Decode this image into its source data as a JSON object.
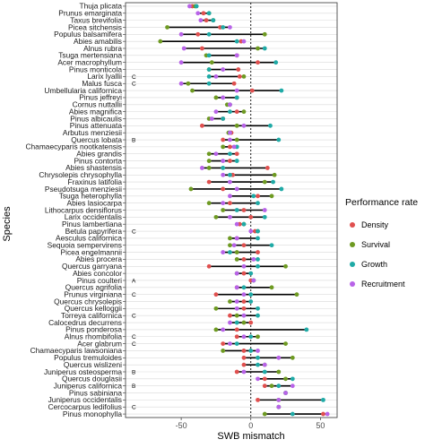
{
  "chart_data": {
    "type": "dot-range",
    "xlabel": "SWB mismatch",
    "ylabel": "Species",
    "xlim": [
      -90,
      62
    ],
    "xticks": [
      -50,
      0,
      50
    ],
    "xtick_labels": [
      "-50",
      "0",
      "50"
    ],
    "reference_line": 0,
    "legend": {
      "title": "Performance rate",
      "placement": "right",
      "entries": [
        {
          "key": "density",
          "label": "Density",
          "color": "#E0504F"
        },
        {
          "key": "survival",
          "label": "Survival",
          "color": "#6E9A22"
        },
        {
          "key": "growth",
          "label": "Growth",
          "color": "#1FAAA6"
        },
        {
          "key": "recruitment",
          "label": "Recruitment",
          "color": "#B863E8"
        }
      ]
    },
    "species": [
      {
        "name": "Thuja plicata",
        "values": {
          "density": -42,
          "survival": -40,
          "growth": -39,
          "recruitment": -44
        }
      },
      {
        "name": "Prunus emarginata",
        "values": {
          "density": -34,
          "survival": -30,
          "growth": -30,
          "recruitment": -38
        }
      },
      {
        "name": "Taxus brevifolia",
        "values": {
          "density": -32,
          "survival": -27,
          "growth": -27,
          "recruitment": -36
        }
      },
      {
        "name": "Picea sitchensis",
        "values": {
          "density": -22,
          "survival": -60,
          "growth": -20,
          "recruitment": -15
        }
      },
      {
        "name": "Populus balsamifera",
        "values": {
          "density": -38,
          "survival": 10,
          "growth": -30,
          "recruitment": -50
        }
      },
      {
        "name": "Abies amabilis",
        "values": {
          "density": -7,
          "survival": -65,
          "growth": -10,
          "recruitment": -5
        }
      },
      {
        "name": "Alnus rubra",
        "values": {
          "density": -35,
          "survival": 5,
          "growth": 10,
          "recruitment": -48
        }
      },
      {
        "name": "Tsuga mertensiana",
        "values": {
          "density": -10,
          "survival": -32,
          "growth": -30,
          "recruitment": -10
        }
      },
      {
        "name": "Acer macrophyllum",
        "values": {
          "density": 5,
          "survival": -28,
          "growth": 18,
          "recruitment": -50
        }
      },
      {
        "name": "Pinus monticola",
        "values": {
          "density": -9,
          "survival": -30,
          "growth": -30,
          "recruitment": -20
        }
      },
      {
        "name": "Larix lyallii",
        "values": {
          "density": -8,
          "survival": -5,
          "growth": -30,
          "recruitment": -25
        },
        "annotation": "C"
      },
      {
        "name": "Malus fusca",
        "values": {
          "density": -12,
          "survival": -45,
          "growth": -30,
          "recruitment": -50
        },
        "annotation": "C"
      },
      {
        "name": "Umbellularia californica",
        "values": {
          "density": 1,
          "survival": -42,
          "growth": 22,
          "recruitment": -10
        }
      },
      {
        "name": "Pinus jeffreyi",
        "values": {
          "density": -10,
          "survival": -25,
          "growth": -10,
          "recruitment": -20
        }
      },
      {
        "name": "Cornus nuttallii",
        "values": {
          "density": -15,
          "survival": -17,
          "growth": -15,
          "recruitment": -15
        }
      },
      {
        "name": "Abies magnifica",
        "values": {
          "density": -10,
          "survival": -5,
          "growth": -15,
          "recruitment": -25
        }
      },
      {
        "name": "Pinus albicaulis",
        "values": {
          "density": -20,
          "survival": -30,
          "growth": -20,
          "recruitment": -28
        }
      },
      {
        "name": "Pinus attenuata",
        "values": {
          "density": -35,
          "survival": -10,
          "growth": 14,
          "recruitment": -5
        }
      },
      {
        "name": "Arbutus menziesii",
        "values": {
          "density": -14,
          "survival": -16,
          "growth": -15,
          "recruitment": -15
        }
      },
      {
        "name": "Quercus lobata",
        "values": {
          "density": -20,
          "survival": -10,
          "growth": 20,
          "recruitment": -15
        },
        "annotation": "B"
      },
      {
        "name": "Chamaecyparis nootkatensis",
        "values": {
          "density": -15,
          "survival": -20,
          "growth": -10,
          "recruitment": -12
        }
      },
      {
        "name": "Abies grandis",
        "values": {
          "density": -10,
          "survival": -30,
          "growth": -15,
          "recruitment": -25
        }
      },
      {
        "name": "Pinus contorta",
        "values": {
          "density": -15,
          "survival": -30,
          "growth": -10,
          "recruitment": -20
        }
      },
      {
        "name": "Abies shastensis",
        "values": {
          "density": 12,
          "survival": -30,
          "growth": -20,
          "recruitment": -35
        }
      },
      {
        "name": "Chrysolepis chrysophylla",
        "values": {
          "density": -13,
          "survival": 17,
          "growth": -15,
          "recruitment": -20
        }
      },
      {
        "name": "Fraxinus latifolia",
        "values": {
          "density": -30,
          "survival": 10,
          "growth": 16,
          "recruitment": -15
        }
      },
      {
        "name": "Pseudotsuga menziesii",
        "values": {
          "density": -20,
          "survival": -43,
          "growth": 22,
          "recruitment": -10
        }
      },
      {
        "name": "Tsuga heterophylla",
        "values": {
          "density": 5,
          "survival": 15,
          "growth": 2,
          "recruitment": -15
        }
      },
      {
        "name": "Abies lasiocarpa",
        "values": {
          "density": -15,
          "survival": -30,
          "growth": 5,
          "recruitment": -20
        }
      },
      {
        "name": "Lithocarpus densiflorus",
        "values": {
          "density": -5,
          "survival": -20,
          "growth": -10,
          "recruitment": 10
        }
      },
      {
        "name": "Larix occidentalis",
        "values": {
          "density": 0,
          "survival": -25,
          "growth": 10,
          "recruitment": -15
        }
      },
      {
        "name": "Pinus lambertiana",
        "values": {
          "density": -8,
          "survival": -5,
          "growth": -5,
          "recruitment": -10
        }
      },
      {
        "name": "Betula papyrifera",
        "values": {
          "density": 3,
          "survival": 5,
          "growth": 5,
          "recruitment": 0
        },
        "annotation": "C"
      },
      {
        "name": "Aesculus californica",
        "values": {
          "density": -10,
          "survival": -15,
          "growth": 5,
          "recruitment": -10
        }
      },
      {
        "name": "Sequoia sempervirens",
        "values": {
          "density": -5,
          "survival": -15,
          "growth": 15,
          "recruitment": -12
        }
      },
      {
        "name": "Picea engelmannii",
        "values": {
          "density": 5,
          "survival": -10,
          "growth": -15,
          "recruitment": -20
        }
      },
      {
        "name": "Abies procera",
        "values": {
          "density": -5,
          "survival": -10,
          "growth": 5,
          "recruitment": 2
        }
      },
      {
        "name": "Quercus garryana",
        "values": {
          "density": -30,
          "survival": 25,
          "growth": 5,
          "recruitment": -5
        }
      },
      {
        "name": "Abies concolor",
        "values": {
          "density": -5,
          "survival": -10,
          "growth": 0,
          "recruitment": -10
        }
      },
      {
        "name": "Pinus coulteri",
        "values": {
          "density": 0,
          "survival": 2,
          "growth": 2,
          "recruitment": 2
        },
        "annotation": "A"
      },
      {
        "name": "Quercus agrifolia",
        "values": {
          "density": -10,
          "survival": 15,
          "growth": -5,
          "recruitment": -10
        }
      },
      {
        "name": "Prunus virginiana",
        "values": {
          "density": -25,
          "survival": 33,
          "growth": 0,
          "recruitment": -5
        },
        "annotation": "C"
      },
      {
        "name": "Quercus chrysolepis",
        "values": {
          "density": -5,
          "survival": -15,
          "growth": 0,
          "recruitment": -10
        }
      },
      {
        "name": "Quercus kelloggii",
        "values": {
          "density": -5,
          "survival": -25,
          "growth": 5,
          "recruitment": -10
        }
      },
      {
        "name": "Torreya californica",
        "values": {
          "density": -15,
          "survival": -10,
          "growth": 5,
          "recruitment": -5
        },
        "annotation": "C"
      },
      {
        "name": "Calocedrus decurrens",
        "values": {
          "density": 0,
          "survival": -5,
          "growth": -10,
          "recruitment": -15
        }
      },
      {
        "name": "Pinus ponderosa",
        "values": {
          "density": -10,
          "survival": -25,
          "growth": 40,
          "recruitment": -20
        }
      },
      {
        "name": "Alnus rhombifolia",
        "values": {
          "density": -10,
          "survival": 5,
          "growth": 0,
          "recruitment": -5
        },
        "annotation": "C"
      },
      {
        "name": "Acer glabrum",
        "values": {
          "density": -20,
          "survival": 25,
          "growth": -10,
          "recruitment": -15
        },
        "annotation": "C"
      },
      {
        "name": "Chamaecyparis lawsoniana",
        "values": {
          "density": -5,
          "survival": -20,
          "growth": 0,
          "recruitment": 5
        }
      },
      {
        "name": "Populus tremuloides",
        "values": {
          "density": -5,
          "survival": 30,
          "growth": 5,
          "recruitment": 20
        }
      },
      {
        "name": "Quercus wislizeni",
        "values": {
          "density": -5,
          "survival": 10,
          "growth": 5,
          "recruitment": 10
        }
      },
      {
        "name": "Juniperus osteosperma",
        "values": {
          "density": -10,
          "survival": 20,
          "growth": 10,
          "recruitment": -5
        },
        "annotation": "B"
      },
      {
        "name": "Quercus douglasii",
        "values": {
          "density": 10,
          "survival": 25,
          "growth": 30,
          "recruitment": 5
        }
      },
      {
        "name": "Juniperus californica",
        "values": {
          "density": 10,
          "survival": 15,
          "growth": 20,
          "recruitment": 30
        },
        "annotation": "B"
      },
      {
        "name": "Pinus sabiniana",
        "values": {
          "density": 25,
          "survival": 25,
          "growth": 25,
          "recruitment": 25
        }
      },
      {
        "name": "Juniperus occidentalis",
        "values": {
          "density": 5,
          "survival": 20,
          "growth": 52,
          "recruitment": 20
        }
      },
      {
        "name": "Cercocarpus ledifolius",
        "values": {
          "density": 20,
          "survival": 20,
          "growth": 20,
          "recruitment": 20
        },
        "annotation": "C"
      },
      {
        "name": "Pinus monophylla",
        "values": {
          "density": 52,
          "survival": 10,
          "growth": 30,
          "recruitment": 55
        }
      }
    ]
  }
}
